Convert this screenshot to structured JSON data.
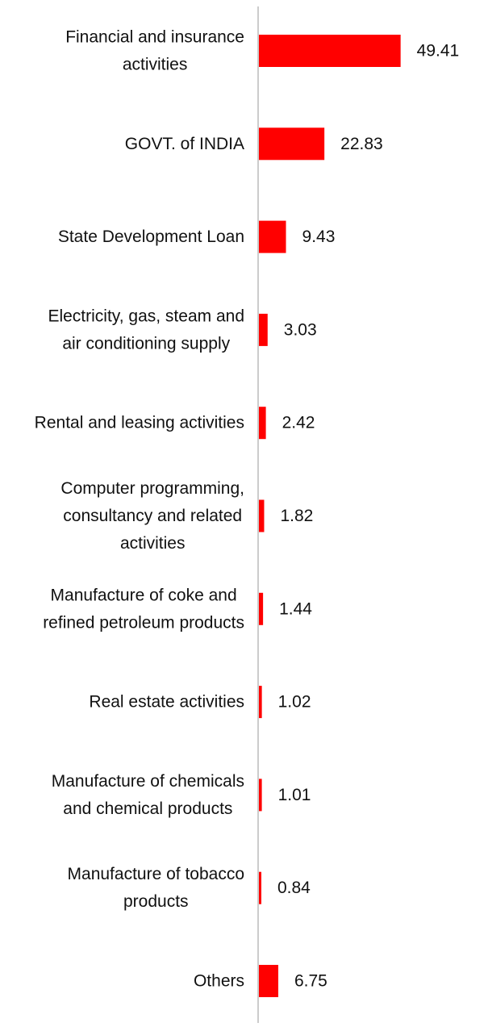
{
  "chart_data": {
    "type": "bar",
    "orientation": "horizontal",
    "categories": [
      "Financial and insurance activities",
      "GOVT. of INDIA",
      "State Development Loan",
      "Electricity, gas, steam and air conditioning supply",
      "Rental and leasing activities",
      "Computer programming, consultancy and related activities",
      "Manufacture of coke and refined petroleum products",
      "Real estate activities",
      "Manufacture of chemicals and chemical products",
      "Manufacture of tobacco products",
      "Others"
    ],
    "category_lines": [
      [
        "Financial and insurance",
        "activities"
      ],
      [
        "GOVT. of INDIA"
      ],
      [
        "State Development Loan"
      ],
      [
        "Electricity, gas, steam and",
        "air conditioning supply"
      ],
      [
        "Rental and leasing activities"
      ],
      [
        "Computer programming,",
        "consultancy and related",
        "activities"
      ],
      [
        "Manufacture of coke and",
        "refined petroleum products"
      ],
      [
        "Real estate activities"
      ],
      [
        "Manufacture of chemicals",
        "and chemical products"
      ],
      [
        "Manufacture of tobacco",
        "products"
      ],
      [
        "Others"
      ]
    ],
    "values": [
      49.41,
      22.83,
      9.43,
      3.03,
      2.42,
      1.82,
      1.44,
      1.02,
      1.01,
      0.84,
      6.75
    ],
    "value_labels": [
      "49.41",
      "22.83",
      "9.43",
      "3.03",
      "2.42",
      "1.82",
      "1.44",
      "1.02",
      "1.01",
      "0.84",
      "6.75"
    ],
    "bar_color": "#ff0000",
    "axis_color": "#cccccc",
    "grid": false,
    "legend": "none"
  }
}
